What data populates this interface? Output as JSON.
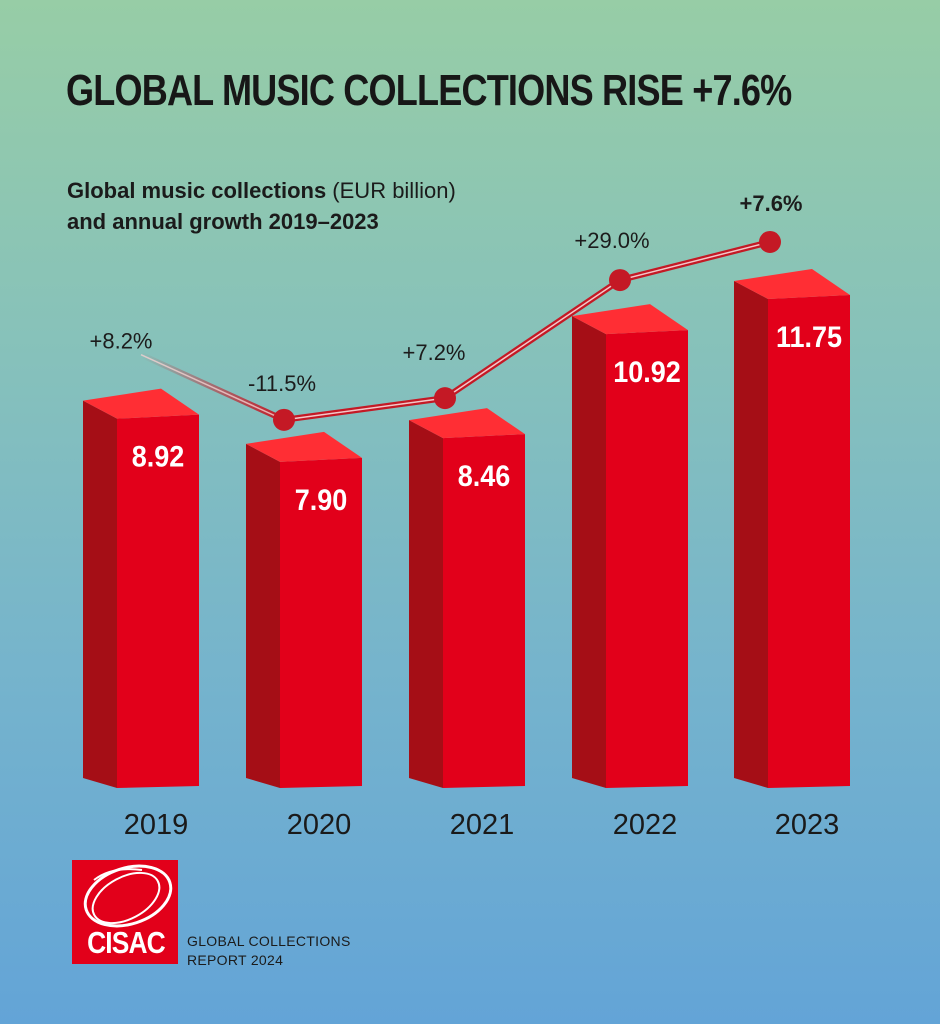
{
  "title": "GLOBAL MUSIC COLLECTIONS RISE +7.6%",
  "subtitle": {
    "bold_part1": "Global music collections",
    "regular_part": " (EUR billion)",
    "line2": "and annual growth 2019–2023"
  },
  "chart_data": {
    "type": "bar",
    "title": "Global music collections (EUR billion) and annual growth 2019–2023",
    "categories": [
      "2019",
      "2020",
      "2021",
      "2022",
      "2023"
    ],
    "series": [
      {
        "name": "Global music collections (EUR billion)",
        "values": [
          8.92,
          7.9,
          8.46,
          10.92,
          11.75
        ],
        "labels": [
          "8.92",
          "7.90",
          "8.46",
          "10.92",
          "11.75"
        ]
      },
      {
        "name": "annual growth",
        "type": "line",
        "values": [
          8.2,
          -11.5,
          7.2,
          29.0,
          7.6
        ],
        "labels": [
          "+8.2%",
          "-11.5%",
          "+7.2%",
          "+29.0%",
          "+7.6%"
        ]
      }
    ],
    "colors": {
      "bar_front": "#e2001a",
      "bar_side": "#a50e16",
      "bar_top": "#ff2e34",
      "line": "#c41925"
    }
  },
  "footer": {
    "logo_text": "CISAC",
    "report_line1": "GLOBAL COLLECTIONS",
    "report_line2": "REPORT 2024"
  }
}
